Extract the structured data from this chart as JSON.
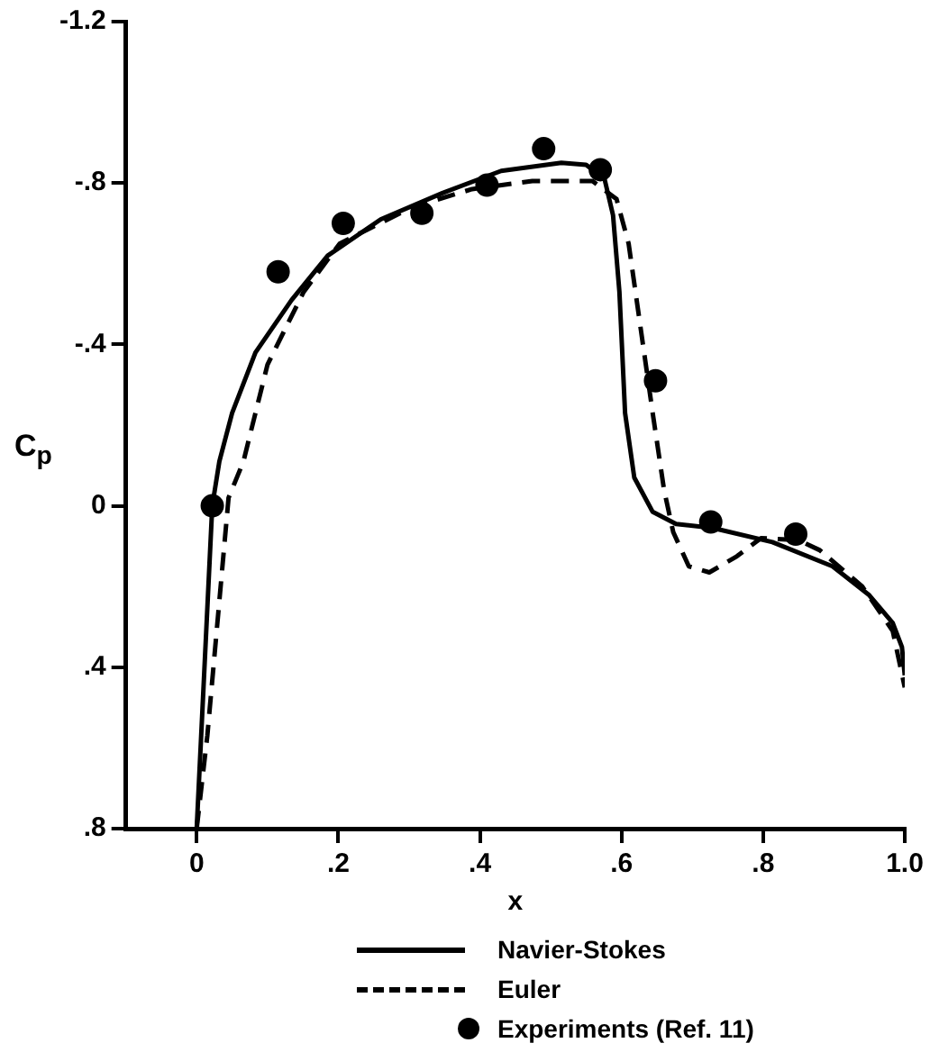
{
  "chart_data": {
    "type": "line",
    "xlabel": "x",
    "ylabel": "C$_{p}$",
    "xlim": [
      -0.1,
      1.0
    ],
    "ylim": [
      0.8,
      -1.2
    ],
    "xticks": [
      0,
      {
        "value": 0.2,
        "label": ".2"
      },
      {
        "value": 0.4,
        "label": ".4"
      },
      {
        "value": 0.6,
        "label": ".6"
      },
      {
        "value": 0.8,
        "label": ".8"
      },
      {
        "value": 1.0,
        "label": "1.0"
      }
    ],
    "yticks": [
      {
        "value": -1.2,
        "label": "-1.2"
      },
      {
        "value": -0.8,
        "label": "-.8"
      },
      {
        "value": -0.4,
        "label": "-.4"
      },
      0,
      {
        "value": 0.4,
        "label": ".4"
      },
      {
        "value": 0.8,
        "label": ".8"
      }
    ],
    "grid": false,
    "legend": "bottom",
    "series": [
      {
        "name": "Navier-Stokes",
        "type": "line",
        "line_style": "solid",
        "marker": "none",
        "color": "#000000",
        "x": [
          0,
          0.022,
          0.032,
          0.05,
          0.083,
          0.134,
          0.185,
          0.26,
          0.347,
          0.43,
          0.515,
          0.55,
          0.576,
          0.588,
          0.597,
          0.605,
          0.618,
          0.644,
          0.677,
          0.729,
          0.813,
          0.898,
          0.949,
          0.983,
          0.996,
          1.0
        ],
        "values": [
          0.8,
          0,
          -0.11,
          -0.23,
          -0.38,
          -0.51,
          -0.62,
          -0.71,
          -0.775,
          -0.83,
          -0.85,
          -0.845,
          -0.81,
          -0.72,
          -0.53,
          -0.23,
          -0.07,
          0.015,
          0.045,
          0.055,
          0.09,
          0.15,
          0.22,
          0.29,
          0.35,
          0.42
        ]
      },
      {
        "name": "Euler",
        "type": "line",
        "line_style": "dashed",
        "marker": "none",
        "color": "#000000",
        "x": [
          0,
          0.015,
          0.045,
          0.066,
          0.1,
          0.151,
          0.202,
          0.304,
          0.389,
          0.474,
          0.559,
          0.593,
          0.61,
          0.627,
          0.644,
          0.66,
          0.673,
          0.695,
          0.724,
          0.763,
          0.797,
          0.85,
          0.88,
          0.94,
          0.983,
          1.0
        ],
        "values": [
          0.8,
          0.57,
          -0.02,
          -0.11,
          -0.35,
          -0.53,
          -0.65,
          -0.74,
          -0.785,
          -0.805,
          -0.805,
          -0.76,
          -0.65,
          -0.44,
          -0.23,
          -0.04,
          0.065,
          0.15,
          0.165,
          0.125,
          0.08,
          0.085,
          0.11,
          0.2,
          0.31,
          0.45
        ]
      },
      {
        "name": "Experiments (Ref. 11)",
        "type": "scatter",
        "marker": "circle",
        "color": "#000000",
        "x": [
          0.022,
          0.115,
          0.207,
          0.318,
          0.41,
          0.49,
          0.57,
          0.648,
          0.726,
          0.846
        ],
        "values": [
          0,
          -0.58,
          -0.7,
          -0.725,
          -0.795,
          -0.885,
          -0.833,
          -0.31,
          0.04,
          0.07
        ]
      }
    ]
  }
}
